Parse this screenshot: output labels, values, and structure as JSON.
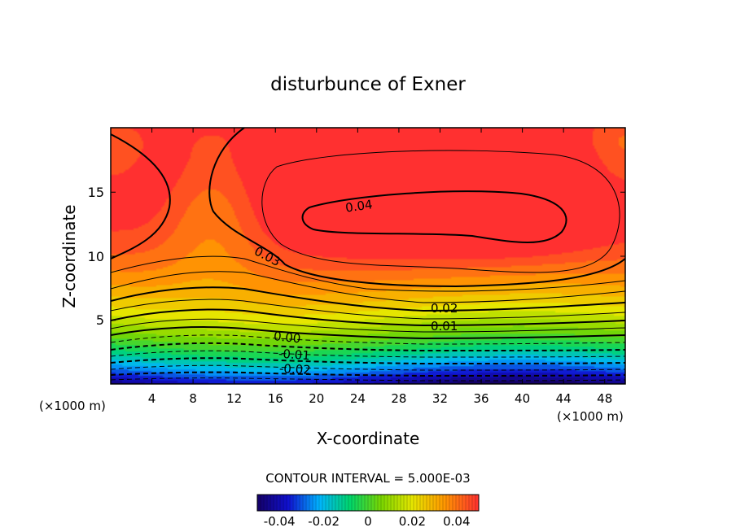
{
  "chart_data": {
    "type": "heatmap",
    "title": "disturbunce of Exner",
    "xlabel": "X-coordinate",
    "ylabel": "Z-coordinate",
    "x_unit_left": "(×1000 m)",
    "x_unit_right": "(×1000 m)",
    "xlim": [
      0,
      50
    ],
    "ylim": [
      0,
      20
    ],
    "x_ticks": [
      "4",
      "8",
      "12",
      "16",
      "20",
      "24",
      "28",
      "32",
      "36",
      "40",
      "44",
      "48"
    ],
    "y_ticks": [
      "5",
      "10",
      "15"
    ],
    "contour_interval_text": "CONTOUR INTERVAL = 5.000E-03",
    "contour_labels": [
      "0.04",
      "0.03",
      "0.02",
      "0.01",
      "0.00",
      "-0.01",
      "-0.02"
    ],
    "colorbar": {
      "range": [
        -0.05,
        0.05
      ],
      "ticks": [
        "-0.04",
        "-0.02",
        "0",
        "0.02",
        "0.04"
      ]
    },
    "colormap": "rainbow (blue = negative, red = positive)",
    "field_summary": {
      "max_value": 0.045,
      "max_location": {
        "x": 37,
        "z": 13
      },
      "min_value": -0.045,
      "min_location": "near z = 0"
    }
  }
}
